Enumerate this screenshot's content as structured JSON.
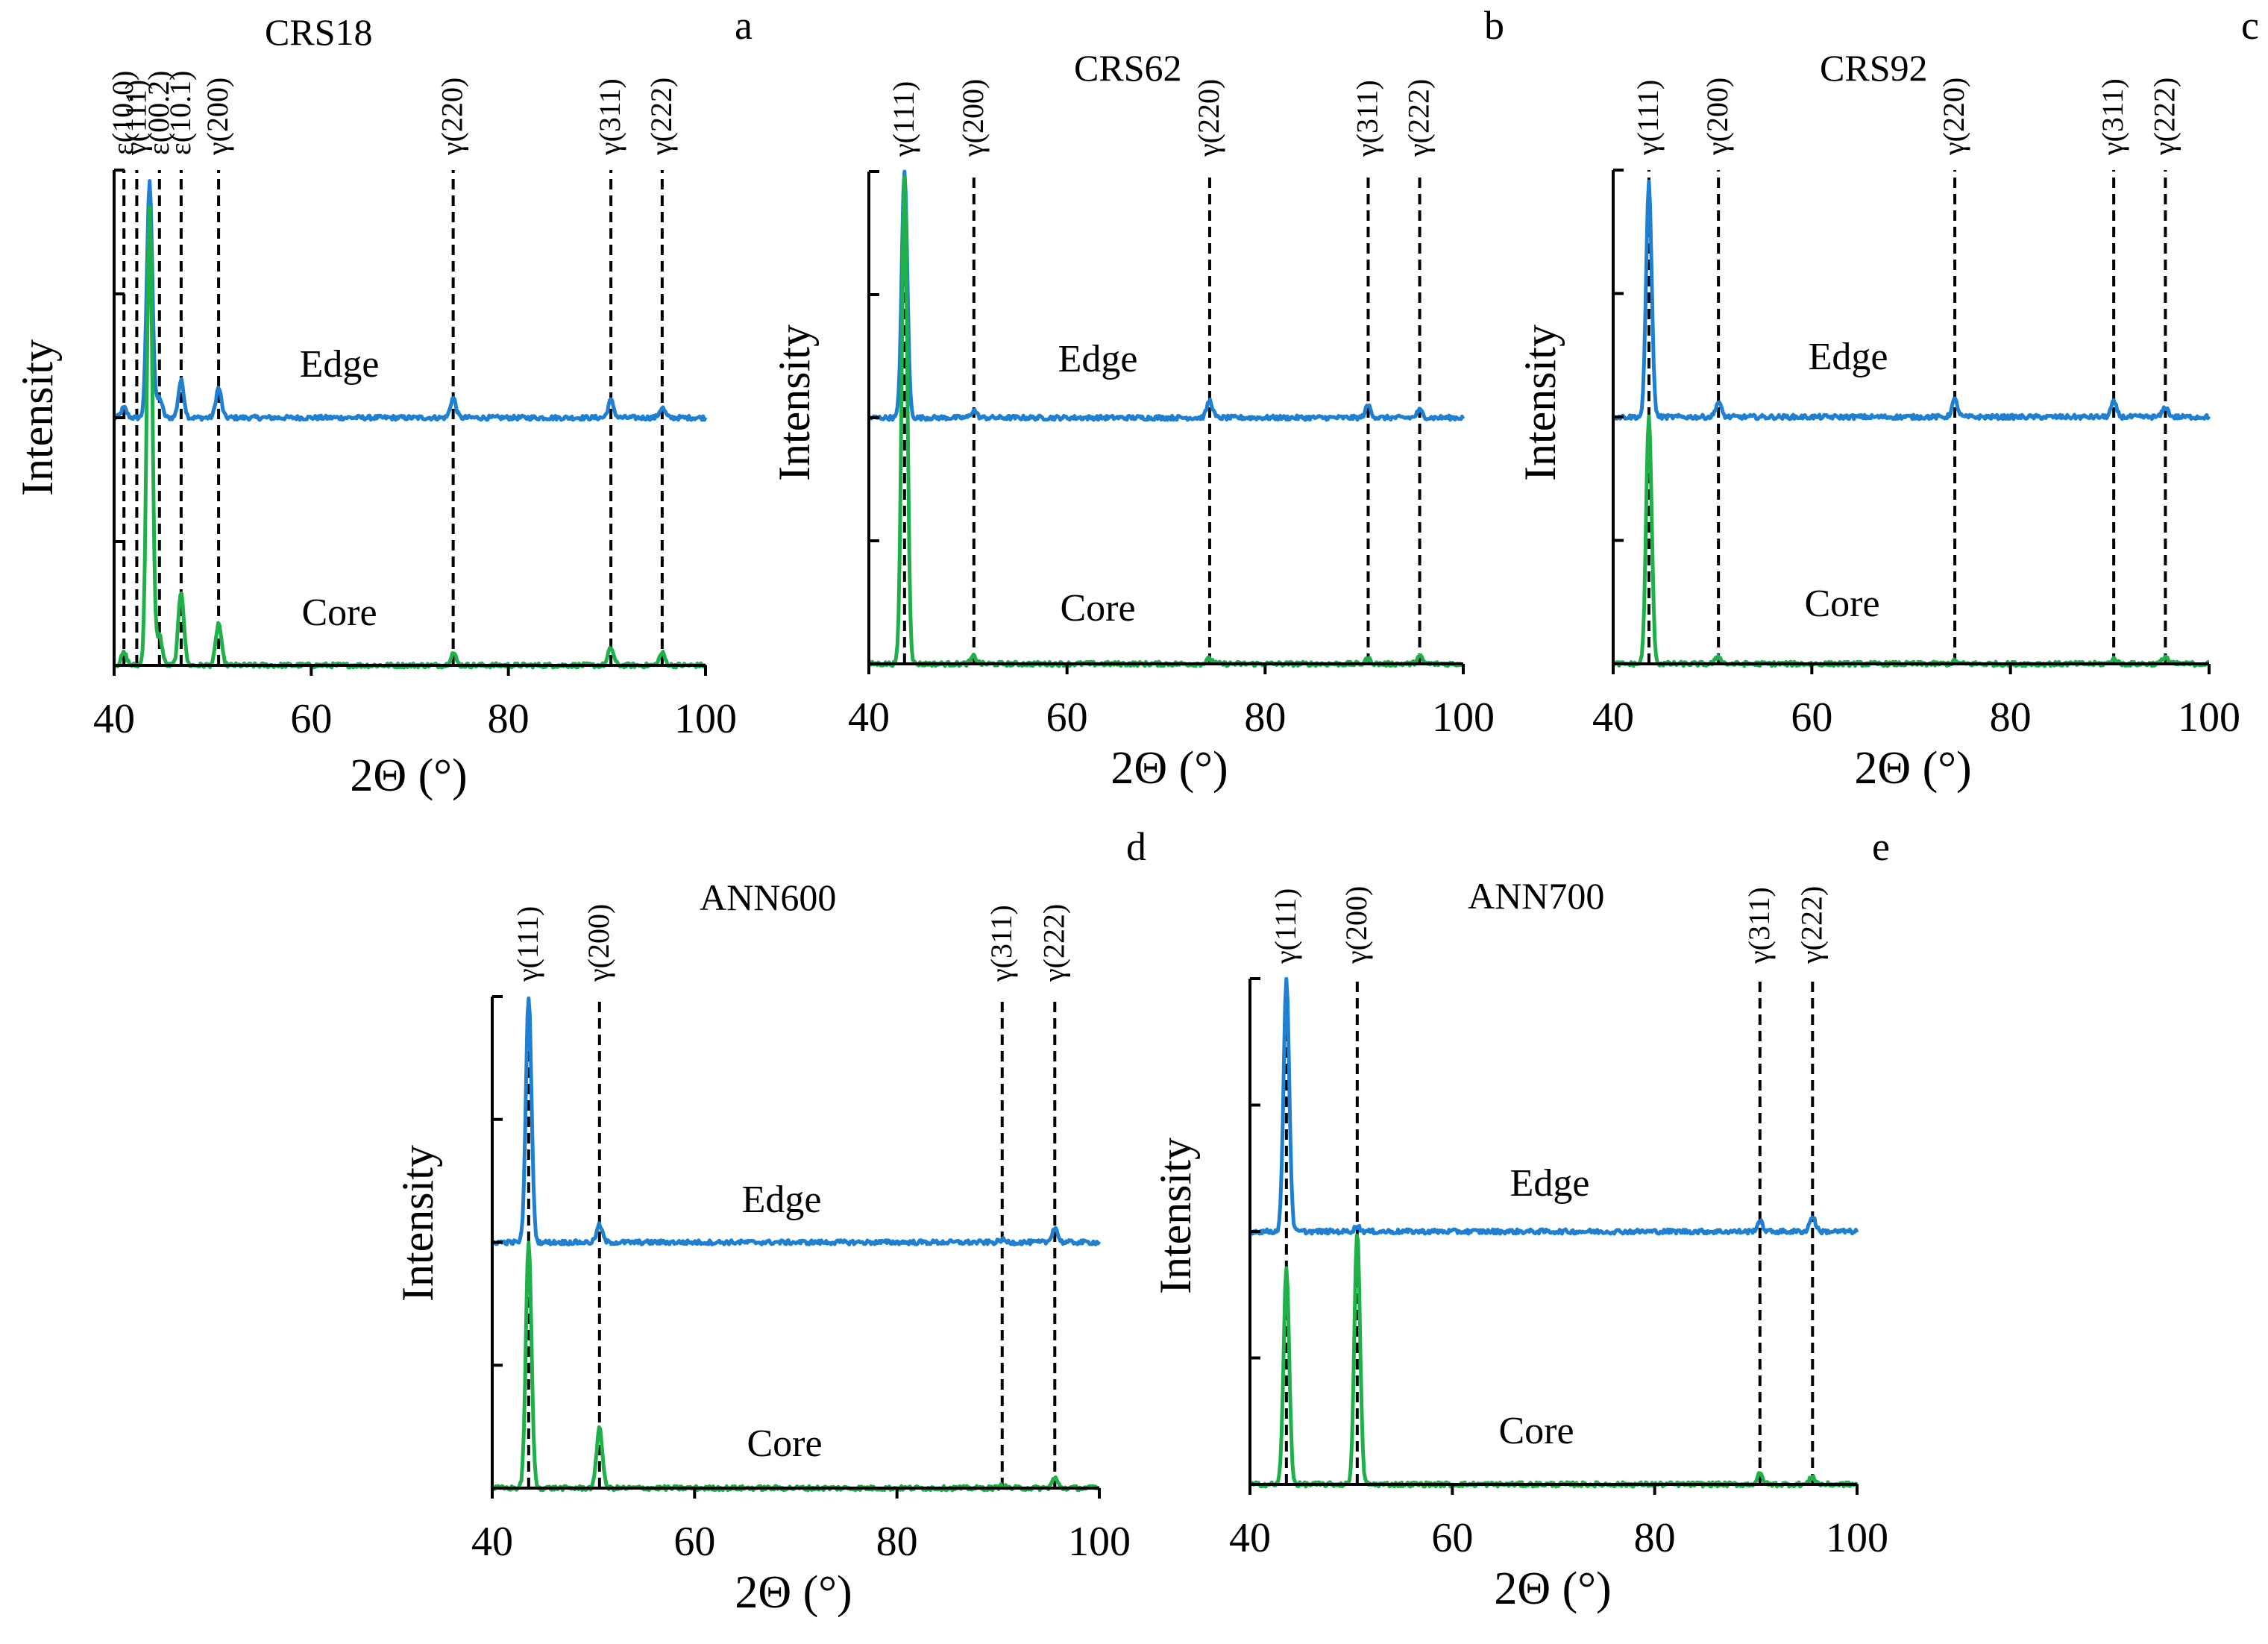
{
  "figure": {
    "colors": {
      "edge": "#1f7fd0",
      "core": "#1fb04a",
      "axis": "#000000",
      "ref_line": "#000000"
    }
  },
  "chart_data": [
    {
      "type": "line",
      "panel": "a",
      "title": "CRS18",
      "xlabel": "2Θ (°)",
      "ylabel": "Intensity",
      "xlim": [
        40,
        100
      ],
      "xticks": [
        40,
        60,
        80,
        100
      ],
      "yticks_count": 5,
      "ylim": [
        0,
        2
      ],
      "series": [
        {
          "name": "Edge",
          "offset": 1.0,
          "peaks": [
            [
              41.0,
              0.04
            ],
            [
              43.6,
              0.95
            ],
            [
              44.6,
              0.08
            ],
            [
              46.8,
              0.15
            ],
            [
              50.6,
              0.12
            ],
            [
              74.4,
              0.08
            ],
            [
              90.4,
              0.07
            ],
            [
              95.6,
              0.04
            ]
          ]
        },
        {
          "name": "Core",
          "offset": 0.0,
          "peaks": [
            [
              41.0,
              0.05
            ],
            [
              43.6,
              1.85
            ],
            [
              44.6,
              0.12
            ],
            [
              46.8,
              0.3
            ],
            [
              50.6,
              0.17
            ],
            [
              74.4,
              0.05
            ],
            [
              90.4,
              0.07
            ],
            [
              95.6,
              0.05
            ]
          ]
        }
      ],
      "ref_lines": [
        {
          "x": 41.0,
          "label": "ε(10.0)"
        },
        {
          "x": 42.3,
          "label": "γ(111)"
        },
        {
          "x": 44.6,
          "label": "ε(00.2)"
        },
        {
          "x": 46.8,
          "label": "ε(10.1)"
        },
        {
          "x": 50.6,
          "label": "γ(200)"
        },
        {
          "x": 74.4,
          "label": "γ(220)"
        },
        {
          "x": 90.4,
          "label": "γ(311)"
        },
        {
          "x": 95.6,
          "label": "γ(222)"
        }
      ]
    },
    {
      "type": "line",
      "panel": "b",
      "title": "CRS62",
      "xlabel": "2Θ (°)",
      "ylabel": "Intensity",
      "xlim": [
        40,
        100
      ],
      "xticks": [
        40,
        60,
        80,
        100
      ],
      "yticks_count": 5,
      "ylim": [
        0,
        2
      ],
      "series": [
        {
          "name": "Edge",
          "offset": 1.0,
          "peaks": [
            [
              43.6,
              1.0
            ],
            [
              50.6,
              0.03
            ],
            [
              74.4,
              0.07
            ],
            [
              90.4,
              0.05
            ],
            [
              95.6,
              0.03
            ]
          ]
        },
        {
          "name": "Core",
          "offset": 0.0,
          "peaks": [
            [
              43.6,
              1.98
            ],
            [
              50.6,
              0.03
            ],
            [
              74.4,
              0.02
            ],
            [
              90.4,
              0.02
            ],
            [
              95.6,
              0.03
            ]
          ]
        }
      ],
      "ref_lines": [
        {
          "x": 43.6,
          "label": "γ(111)"
        },
        {
          "x": 50.6,
          "label": "γ(200)"
        },
        {
          "x": 74.4,
          "label": "γ(220)"
        },
        {
          "x": 90.4,
          "label": "γ(311)"
        },
        {
          "x": 95.6,
          "label": "γ(222)"
        }
      ]
    },
    {
      "type": "line",
      "panel": "c",
      "title": "CRS92",
      "xlabel": "2Θ (°)",
      "ylabel": "Intensity",
      "xlim": [
        40,
        100
      ],
      "xticks": [
        40,
        60,
        80,
        100
      ],
      "yticks_count": 5,
      "ylim": [
        0,
        2
      ],
      "series": [
        {
          "name": "Edge",
          "offset": 1.0,
          "peaks": [
            [
              43.6,
              0.95
            ],
            [
              50.6,
              0.06
            ],
            [
              74.4,
              0.07
            ],
            [
              90.4,
              0.06
            ],
            [
              95.6,
              0.04
            ]
          ]
        },
        {
          "name": "Core",
          "offset": 0.0,
          "peaks": [
            [
              43.6,
              1.0
            ],
            [
              50.6,
              0.03
            ],
            [
              74.4,
              0.01
            ],
            [
              90.4,
              0.02
            ],
            [
              95.6,
              0.03
            ]
          ]
        }
      ],
      "ref_lines": [
        {
          "x": 43.6,
          "label": "γ(111)"
        },
        {
          "x": 50.6,
          "label": "γ(200)"
        },
        {
          "x": 74.4,
          "label": "γ(220)"
        },
        {
          "x": 90.4,
          "label": "γ(311)"
        },
        {
          "x": 95.6,
          "label": "γ(222)"
        }
      ]
    },
    {
      "type": "line",
      "panel": "d",
      "title": "ANN600",
      "xlabel": "2Θ (°)",
      "ylabel": "Intensity",
      "xlim": [
        40,
        100
      ],
      "xticks": [
        40,
        60,
        80,
        100
      ],
      "yticks_count": 5,
      "ylim": [
        0,
        2
      ],
      "series": [
        {
          "name": "Edge",
          "offset": 1.0,
          "peaks": [
            [
              43.6,
              1.0
            ],
            [
              50.6,
              0.07
            ],
            [
              90.4,
              0.01
            ],
            [
              95.6,
              0.06
            ]
          ]
        },
        {
          "name": "Core",
          "offset": 0.0,
          "peaks": [
            [
              43.6,
              1.0
            ],
            [
              50.6,
              0.25
            ],
            [
              90.4,
              0.01
            ],
            [
              95.6,
              0.04
            ]
          ]
        }
      ],
      "ref_lines": [
        {
          "x": 43.6,
          "label": "γ(111)"
        },
        {
          "x": 50.6,
          "label": "γ(200)"
        },
        {
          "x": 90.4,
          "label": "γ(311)"
        },
        {
          "x": 95.6,
          "label": "γ(222)"
        }
      ]
    },
    {
      "type": "line",
      "panel": "e",
      "title": "ANN700",
      "xlabel": "2Θ (°)",
      "ylabel": "Intensity",
      "xlim": [
        40,
        100
      ],
      "xticks": [
        40,
        60,
        80,
        100
      ],
      "yticks_count": 5,
      "ylim": [
        0,
        2
      ],
      "series": [
        {
          "name": "Edge",
          "offset": 1.0,
          "peaks": [
            [
              43.6,
              1.0
            ],
            [
              50.6,
              0.02
            ],
            [
              90.4,
              0.04
            ],
            [
              95.6,
              0.06
            ]
          ]
        },
        {
          "name": "Core",
          "offset": 0.0,
          "peaks": [
            [
              43.6,
              0.85
            ],
            [
              50.6,
              1.0
            ],
            [
              90.4,
              0.04
            ],
            [
              95.6,
              0.03
            ]
          ]
        }
      ],
      "ref_lines": [
        {
          "x": 43.6,
          "label": "γ(111)"
        },
        {
          "x": 50.6,
          "label": "γ(200)"
        },
        {
          "x": 90.4,
          "label": "γ(311)"
        },
        {
          "x": 95.6,
          "label": "γ(222)"
        }
      ]
    }
  ]
}
